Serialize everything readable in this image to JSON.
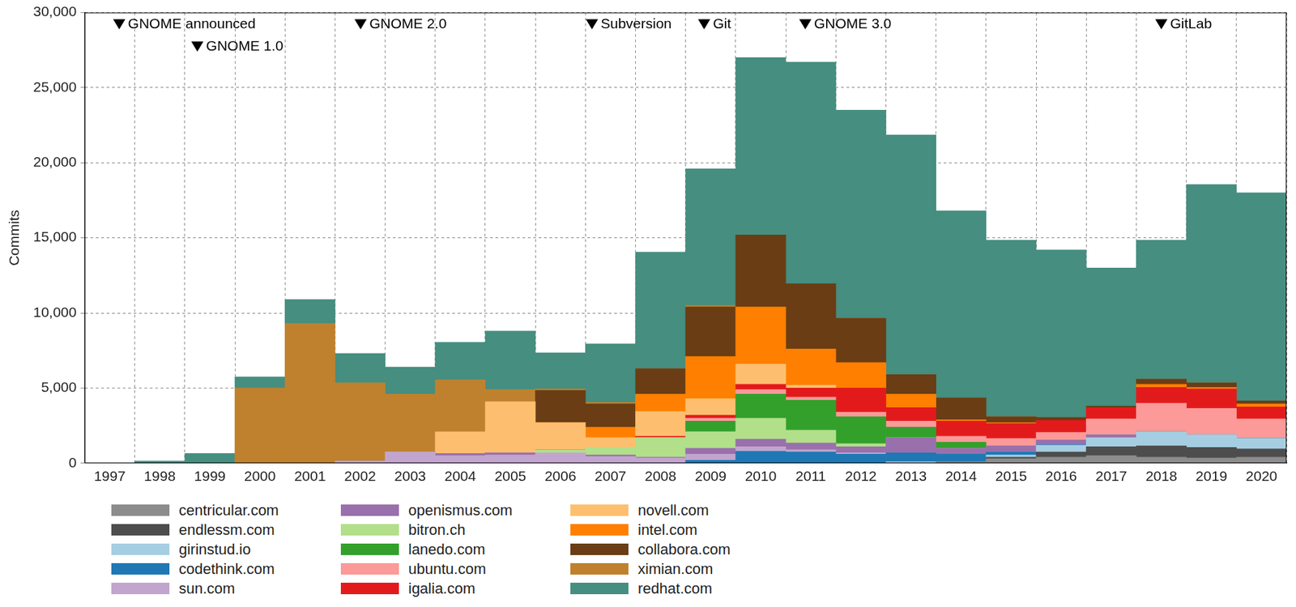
{
  "chart_data": {
    "type": "bar",
    "stacked": true,
    "grid": true,
    "legend": "bottom",
    "ylabel": "Commits",
    "categories": [
      "1997",
      "1998",
      "1999",
      "2000",
      "2001",
      "2002",
      "2003",
      "2004",
      "2005",
      "2006",
      "2007",
      "2008",
      "2009",
      "2010",
      "2011",
      "2012",
      "2013",
      "2014",
      "2015",
      "2016",
      "2017",
      "2018",
      "2019",
      "2020"
    ],
    "ylim": [
      0,
      30000
    ],
    "yticks": [
      0,
      {
        "value": 5000,
        "label": "5,000"
      },
      {
        "value": 10000,
        "label": "10,000"
      },
      {
        "value": 15000,
        "label": "15,000"
      },
      {
        "value": 20000,
        "label": "20,000"
      },
      {
        "value": 25000,
        "label": "25,000"
      },
      {
        "value": 30000,
        "label": "30,000"
      }
    ],
    "annotations": [
      {
        "text": "GNOME announced",
        "x": 1997.69
      },
      {
        "text": "GNOME 1.0",
        "x": 1999.25
      },
      {
        "text": "GNOME 2.0",
        "x": 2002.51
      },
      {
        "text": "Subversion",
        "x": 2007.13
      },
      {
        "text": "Git",
        "x": 2009.37
      },
      {
        "text": "GNOME 3.0",
        "x": 2011.39
      },
      {
        "text": "GitLab",
        "x": 2018.5
      }
    ],
    "series": [
      {
        "name": "centricular.com",
        "color": "#8c8c8c",
        "values": [
          0,
          0,
          0,
          0,
          0,
          0,
          0,
          0,
          0,
          0,
          0,
          0,
          0,
          0,
          0,
          0,
          0,
          100,
          300,
          400,
          500,
          400,
          350,
          400
        ]
      },
      {
        "name": "endlessm.com",
        "color": "#4d4d4d",
        "values": [
          0,
          0,
          0,
          0,
          0,
          0,
          0,
          0,
          0,
          0,
          0,
          0,
          0,
          0,
          0,
          0,
          0,
          0,
          100,
          350,
          600,
          750,
          700,
          550
        ]
      },
      {
        "name": "girinstud.io",
        "color": "#a6cee3",
        "values": [
          0,
          0,
          0,
          0,
          0,
          0,
          0,
          0,
          0,
          0,
          0,
          0,
          0,
          0,
          0,
          0,
          100,
          0,
          150,
          450,
          600,
          950,
          850,
          700
        ]
      },
      {
        "name": "codethink.com",
        "color": "#1f78b4",
        "values": [
          0,
          0,
          0,
          0,
          0,
          0,
          0,
          0,
          0,
          0,
          0,
          0,
          200,
          800,
          750,
          600,
          600,
          500,
          200,
          50,
          0,
          0,
          0,
          0
        ]
      },
      {
        "name": "sun.com",
        "color": "#c2a5cf",
        "values": [
          0,
          0,
          0,
          0,
          0,
          150,
          750,
          500,
          550,
          700,
          450,
          350,
          400,
          300,
          150,
          100,
          0,
          0,
          0,
          0,
          0,
          0,
          0,
          0
        ]
      },
      {
        "name": "openismus.com",
        "color": "#9970ab",
        "values": [
          0,
          0,
          0,
          0,
          0,
          0,
          0,
          150,
          150,
          0,
          100,
          50,
          400,
          500,
          450,
          400,
          1000,
          400,
          400,
          300,
          200,
          0,
          0,
          0
        ]
      },
      {
        "name": "bitron.ch",
        "color": "#b2df8a",
        "values": [
          0,
          0,
          0,
          0,
          0,
          0,
          0,
          0,
          0,
          200,
          500,
          1300,
          1100,
          1400,
          850,
          200,
          0,
          0,
          0,
          0,
          0,
          0,
          0,
          0
        ]
      },
      {
        "name": "lanedo.com",
        "color": "#33a02c",
        "values": [
          0,
          0,
          0,
          0,
          0,
          0,
          0,
          0,
          0,
          0,
          0,
          0,
          700,
          1600,
          2000,
          1800,
          700,
          400,
          0,
          0,
          0,
          0,
          0,
          0
        ]
      },
      {
        "name": "ubuntu.com",
        "color": "#fb9a99",
        "values": [
          0,
          0,
          0,
          0,
          0,
          0,
          0,
          0,
          0,
          0,
          0,
          0,
          200,
          300,
          200,
          300,
          400,
          400,
          500,
          500,
          1050,
          1900,
          1750,
          1300
        ]
      },
      {
        "name": "igalia.com",
        "color": "#e31a1c",
        "values": [
          0,
          0,
          0,
          0,
          0,
          0,
          0,
          0,
          0,
          0,
          0,
          100,
          200,
          350,
          600,
          1600,
          900,
          1000,
          1000,
          800,
          750,
          1050,
          1300,
          800
        ]
      },
      {
        "name": "novell.com",
        "color": "#fdbf6f",
        "values": [
          0,
          0,
          0,
          0,
          0,
          0,
          0,
          1450,
          3400,
          1800,
          650,
          1650,
          1100,
          1350,
          200,
          0,
          0,
          0,
          0,
          0,
          0,
          0,
          0,
          0
        ]
      },
      {
        "name": "intel.com",
        "color": "#ff7f00",
        "values": [
          0,
          0,
          0,
          0,
          0,
          0,
          0,
          0,
          0,
          0,
          700,
          1150,
          2800,
          3800,
          2400,
          1700,
          900,
          100,
          50,
          0,
          0,
          200,
          100,
          200
        ]
      },
      {
        "name": "collabora.com",
        "color": "#6a3d14",
        "values": [
          0,
          0,
          0,
          0,
          0,
          0,
          0,
          0,
          0,
          2150,
          1550,
          1700,
          3300,
          4800,
          4350,
          2950,
          1300,
          1450,
          400,
          200,
          100,
          350,
          300,
          200
        ]
      },
      {
        "name": "ximian.com",
        "color": "#bf812d",
        "values": [
          0,
          0,
          0,
          5000,
          9300,
          5200,
          3850,
          3450,
          800,
          100,
          100,
          0,
          100,
          0,
          0,
          0,
          0,
          0,
          0,
          0,
          0,
          0,
          0,
          0
        ]
      },
      {
        "name": "redhat.com",
        "color": "#458e80",
        "values": [
          0,
          150,
          650,
          750,
          1600,
          1950,
          1800,
          2500,
          3900,
          2400,
          3900,
          7750,
          9100,
          11800,
          14750,
          13850,
          15950,
          12450,
          11750,
          11150,
          9200,
          9250,
          13200,
          13850
        ]
      }
    ]
  }
}
